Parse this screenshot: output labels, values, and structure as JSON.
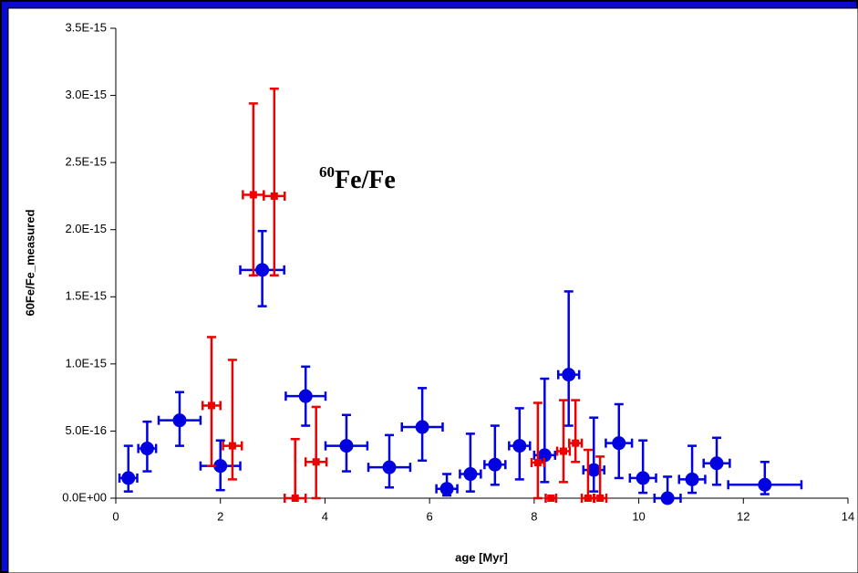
{
  "chart_data": {
    "type": "scatter",
    "x_label": "age [Myr]",
    "y_label": "60Fe/Fe_measured",
    "annotation": {
      "sup": "60",
      "text": "Fe/Fe"
    },
    "xlim": [
      0,
      14
    ],
    "xticks": [
      0,
      2,
      4,
      6,
      8,
      10,
      12,
      14
    ],
    "ylim": [
      0,
      3.5e-15
    ],
    "yticks": [
      {
        "value": 0,
        "label": "0.0E+00"
      },
      {
        "value": 5e-16,
        "label": "5.0E-16"
      },
      {
        "value": 1e-15,
        "label": "1.0E-15"
      },
      {
        "value": 1.5e-15,
        "label": "1.5E-15"
      },
      {
        "value": 2e-15,
        "label": "2.0E-15"
      },
      {
        "value": 2.5e-15,
        "label": "2.5E-15"
      },
      {
        "value": 3e-15,
        "label": "3.0E-15"
      },
      {
        "value": 3.5e-15,
        "label": "3.5E-15"
      }
    ],
    "grid": false,
    "series": [
      {
        "color": "#0000e0",
        "marker": "circle",
        "x": [
          0.24,
          0.6,
          1.22,
          2.0,
          2.8,
          3.63,
          4.41,
          5.23,
          5.86,
          6.33,
          6.78,
          7.25,
          7.72,
          8.2,
          8.66,
          9.14,
          9.62,
          10.08,
          10.55,
          11.02,
          11.49,
          12.41
        ],
        "values": [
          1.5e-16,
          3.7e-16,
          5.8e-16,
          2.4e-16,
          1.7e-15,
          7.6e-16,
          3.9e-16,
          2.3e-16,
          5.3e-16,
          7e-17,
          1.8e-16,
          2.5e-16,
          3.9e-16,
          3.2e-16,
          9.2e-16,
          2.1e-16,
          4.1e-16,
          1.5e-16,
          0,
          1.4e-16,
          2.6e-16,
          1e-16
        ],
        "xerr": [
          0.17,
          0.17,
          0.4,
          0.38,
          0.42,
          0.38,
          0.4,
          0.4,
          0.39,
          0.2,
          0.2,
          0.2,
          0.2,
          0.2,
          0.2,
          0.2,
          0.25,
          0.25,
          0.25,
          0.25,
          0.25,
          0.7
        ],
        "yerr_minus": [
          1e-16,
          1.7e-16,
          1.9e-16,
          1.8e-16,
          2.7e-16,
          2.2e-16,
          1.9e-16,
          1.5e-16,
          2.5e-16,
          5e-17,
          1.3e-16,
          1.5e-16,
          2.5e-16,
          2e-16,
          3.8e-16,
          1.6e-16,
          2.6e-16,
          1.1e-16,
          0,
          1e-16,
          1.6e-16,
          7e-17
        ],
        "yerr_plus": [
          2.4e-16,
          2e-16,
          2.1e-16,
          1.9e-16,
          2.9e-16,
          2.2e-16,
          2.3e-16,
          2.4e-16,
          2.9e-16,
          1.1e-16,
          3e-16,
          2.9e-16,
          2.8e-16,
          5.7e-16,
          6.2e-16,
          3.9e-16,
          2.9e-16,
          2.8e-16,
          1.6e-16,
          2.5e-16,
          1.9e-16,
          1.7e-16
        ]
      },
      {
        "color": "#ee0000",
        "marker": "square",
        "x": [
          1.83,
          2.23,
          2.63,
          3.03,
          3.43,
          3.83,
          8.07,
          8.32,
          8.56,
          8.79,
          9.03,
          9.26
        ],
        "values": [
          6.9e-16,
          3.9e-16,
          2.26e-15,
          2.25e-15,
          0,
          2.7e-16,
          2.65e-16,
          0,
          3.5e-16,
          4.1e-16,
          0,
          0
        ],
        "xerr": [
          0.17,
          0.18,
          0.2,
          0.2,
          0.2,
          0.2,
          0.12,
          0.1,
          0.12,
          0.12,
          0.12,
          0.12
        ],
        "yerr_minus": [
          4.5e-16,
          2.5e-16,
          6e-16,
          5.9e-16,
          0,
          2.7e-16,
          2.65e-16,
          0,
          2.3e-16,
          1.4e-16,
          0,
          0
        ],
        "yerr_plus": [
          5.1e-16,
          6.4e-16,
          6.8e-16,
          8e-16,
          4.4e-16,
          4.1e-16,
          4.45e-16,
          0,
          3.8e-16,
          3.2e-16,
          3.6e-16,
          3.1e-16
        ]
      }
    ]
  }
}
